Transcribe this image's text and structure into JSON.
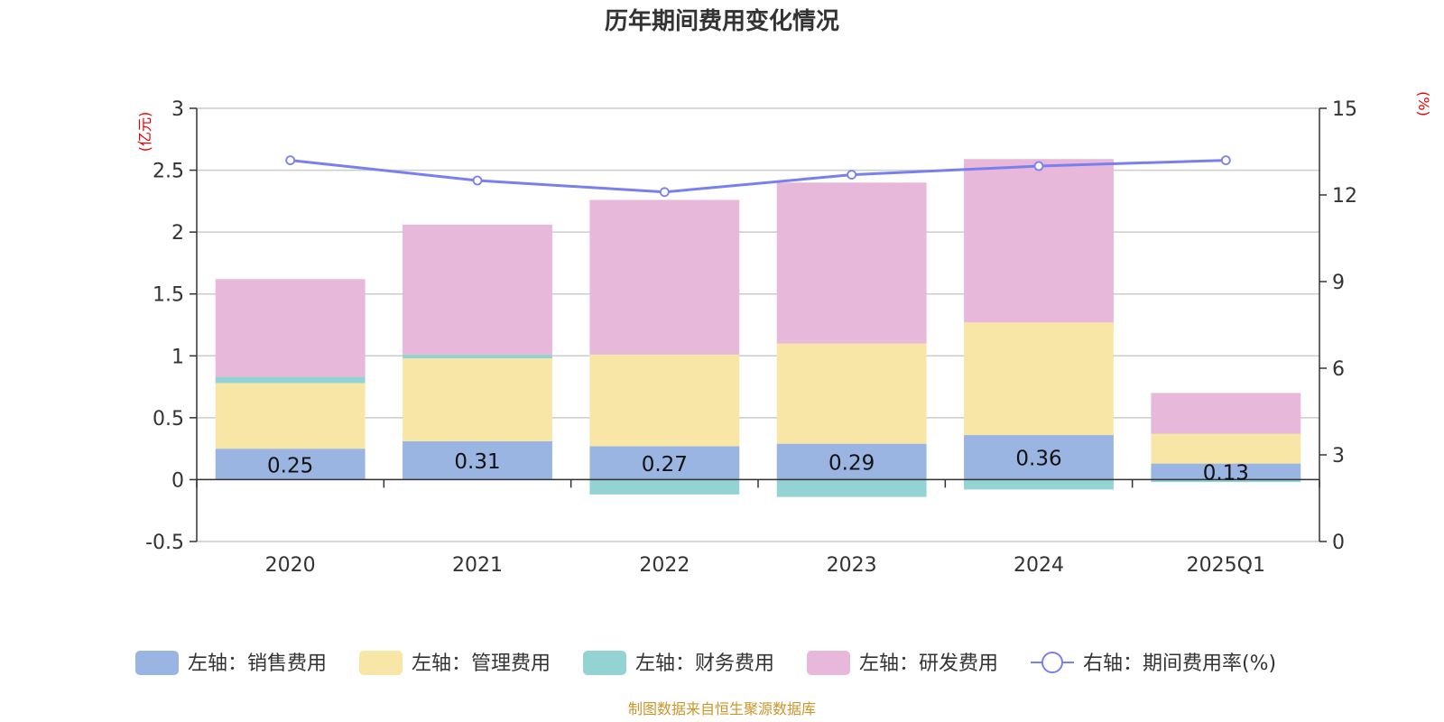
{
  "chart_data": {
    "type": "bar",
    "stacked": true,
    "title": "历年期间费用变化情况",
    "categories": [
      "2020",
      "2021",
      "2022",
      "2023",
      "2024",
      "2025Q1"
    ],
    "left_axis": {
      "unit": "(亿元)",
      "ylim": [
        -0.5,
        3
      ],
      "ticks": [
        "3",
        "2.5",
        "2",
        "1.5",
        "1",
        "0.5",
        "0",
        "-0.5"
      ]
    },
    "right_axis": {
      "unit": "(%)",
      "ylim": [
        0,
        15
      ],
      "ticks": [
        "15",
        "12",
        "9",
        "6",
        "3",
        "0"
      ]
    },
    "series": [
      {
        "name": "左轴：销售费用",
        "axis": "left",
        "color": "#9ab5e1",
        "values": [
          0.25,
          0.31,
          0.27,
          0.29,
          0.36,
          0.13
        ],
        "labels": [
          "0.25",
          "0.31",
          "0.27",
          "0.29",
          "0.36",
          "0.13"
        ]
      },
      {
        "name": "左轴：管理费用",
        "axis": "left",
        "color": "#f8e6a7",
        "values": [
          0.53,
          0.67,
          0.74,
          0.81,
          0.91,
          0.24
        ]
      },
      {
        "name": "左轴：财务费用",
        "axis": "left",
        "color": "#93d3d3",
        "values": [
          0.05,
          0.03,
          -0.12,
          -0.14,
          -0.08,
          -0.02
        ]
      },
      {
        "name": "左轴：研发费用",
        "axis": "left",
        "color": "#e7b8da",
        "values": [
          0.79,
          1.05,
          1.25,
          1.3,
          1.32,
          0.33
        ]
      },
      {
        "name": "右轴：期间费用率(%)",
        "axis": "right",
        "type": "line",
        "color": "#7a7ff0",
        "values": [
          13.2,
          12.5,
          12.1,
          12.7,
          13.0,
          13.2
        ]
      }
    ],
    "grid": true,
    "legend_position": "bottom"
  },
  "source_note": "制图数据来自恒生聚源数据库"
}
